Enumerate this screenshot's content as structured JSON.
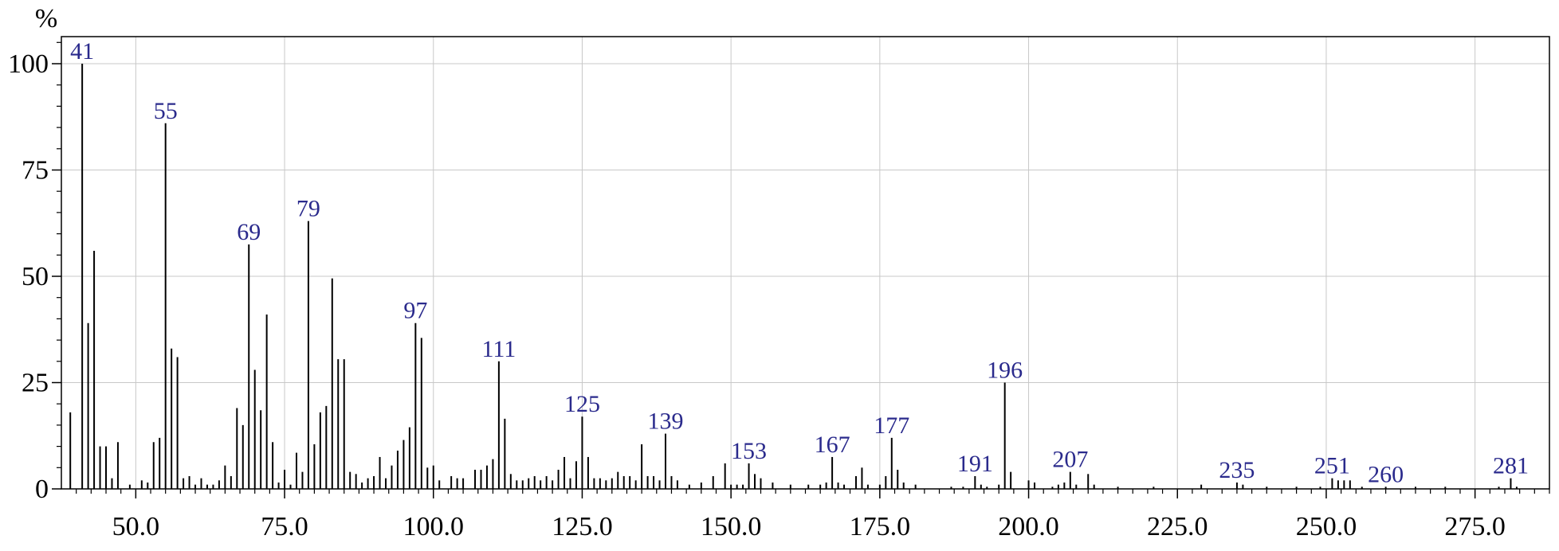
{
  "chart_data": {
    "type": "bar",
    "subtype": "mass-spectrum",
    "ylabel": "%",
    "xlabel": "",
    "xlim": [
      37.5,
      287.5
    ],
    "ylim": [
      0,
      106
    ],
    "grid": true,
    "x_ticks": [
      50.0,
      75.0,
      100.0,
      125.0,
      150.0,
      175.0,
      200.0,
      225.0,
      250.0,
      275.0
    ],
    "x_tick_labels": [
      "50.0",
      "75.0",
      "100.0",
      "125.0",
      "150.0",
      "175.0",
      "200.0",
      "225.0",
      "250.0",
      "275.0"
    ],
    "y_ticks": [
      0,
      25,
      50,
      75,
      100
    ],
    "y_tick_labels": [
      "0",
      "25",
      "50",
      "75",
      "100"
    ],
    "peak_labels": [
      "41",
      "55",
      "69",
      "79",
      "97",
      "111",
      "125",
      "139",
      "153",
      "167",
      "177",
      "191",
      "196",
      "207",
      "235",
      "251",
      "260",
      "281"
    ],
    "peaks": [
      {
        "mz": 39,
        "intensity": 18
      },
      {
        "mz": 41,
        "intensity": 100,
        "label": "41"
      },
      {
        "mz": 42,
        "intensity": 39
      },
      {
        "mz": 43,
        "intensity": 56
      },
      {
        "mz": 44,
        "intensity": 10
      },
      {
        "mz": 45,
        "intensity": 10
      },
      {
        "mz": 46,
        "intensity": 2.5
      },
      {
        "mz": 47,
        "intensity": 11
      },
      {
        "mz": 49,
        "intensity": 1
      },
      {
        "mz": 51,
        "intensity": 2
      },
      {
        "mz": 52,
        "intensity": 1.5
      },
      {
        "mz": 53,
        "intensity": 11
      },
      {
        "mz": 54,
        "intensity": 12
      },
      {
        "mz": 55,
        "intensity": 86,
        "label": "55"
      },
      {
        "mz": 56,
        "intensity": 33
      },
      {
        "mz": 57,
        "intensity": 31
      },
      {
        "mz": 58,
        "intensity": 2.5
      },
      {
        "mz": 59,
        "intensity": 3
      },
      {
        "mz": 60,
        "intensity": 1
      },
      {
        "mz": 61,
        "intensity": 2.5
      },
      {
        "mz": 62,
        "intensity": 1
      },
      {
        "mz": 63,
        "intensity": 1
      },
      {
        "mz": 64,
        "intensity": 2
      },
      {
        "mz": 65,
        "intensity": 5.5
      },
      {
        "mz": 66,
        "intensity": 3
      },
      {
        "mz": 67,
        "intensity": 19
      },
      {
        "mz": 68,
        "intensity": 15
      },
      {
        "mz": 69,
        "intensity": 57.5,
        "label": "69"
      },
      {
        "mz": 70,
        "intensity": 28
      },
      {
        "mz": 71,
        "intensity": 18.5
      },
      {
        "mz": 72,
        "intensity": 41
      },
      {
        "mz": 73,
        "intensity": 11
      },
      {
        "mz": 74,
        "intensity": 1.5
      },
      {
        "mz": 75,
        "intensity": 4.5
      },
      {
        "mz": 76,
        "intensity": 1
      },
      {
        "mz": 77,
        "intensity": 8.5
      },
      {
        "mz": 78,
        "intensity": 4
      },
      {
        "mz": 79,
        "intensity": 63,
        "label": "79"
      },
      {
        "mz": 80,
        "intensity": 10.5
      },
      {
        "mz": 81,
        "intensity": 18
      },
      {
        "mz": 82,
        "intensity": 19.5
      },
      {
        "mz": 83,
        "intensity": 49.5
      },
      {
        "mz": 84,
        "intensity": 30.5
      },
      {
        "mz": 85,
        "intensity": 30.5
      },
      {
        "mz": 86,
        "intensity": 4
      },
      {
        "mz": 87,
        "intensity": 3.5
      },
      {
        "mz": 88,
        "intensity": 1.5
      },
      {
        "mz": 89,
        "intensity": 2.5
      },
      {
        "mz": 90,
        "intensity": 3
      },
      {
        "mz": 91,
        "intensity": 7.5
      },
      {
        "mz": 92,
        "intensity": 2.5
      },
      {
        "mz": 93,
        "intensity": 5.5
      },
      {
        "mz": 94,
        "intensity": 9
      },
      {
        "mz": 95,
        "intensity": 11.5
      },
      {
        "mz": 96,
        "intensity": 14.5
      },
      {
        "mz": 97,
        "intensity": 39,
        "label": "97"
      },
      {
        "mz": 98,
        "intensity": 35.5
      },
      {
        "mz": 99,
        "intensity": 5
      },
      {
        "mz": 100,
        "intensity": 5.5
      },
      {
        "mz": 101,
        "intensity": 2
      },
      {
        "mz": 103,
        "intensity": 3
      },
      {
        "mz": 104,
        "intensity": 2.5
      },
      {
        "mz": 105,
        "intensity": 2.5
      },
      {
        "mz": 107,
        "intensity": 4.5
      },
      {
        "mz": 108,
        "intensity": 4.5
      },
      {
        "mz": 109,
        "intensity": 5.5
      },
      {
        "mz": 110,
        "intensity": 7
      },
      {
        "mz": 111,
        "intensity": 30,
        "label": "111"
      },
      {
        "mz": 112,
        "intensity": 16.5
      },
      {
        "mz": 113,
        "intensity": 3.5
      },
      {
        "mz": 114,
        "intensity": 2
      },
      {
        "mz": 115,
        "intensity": 2
      },
      {
        "mz": 116,
        "intensity": 2.5
      },
      {
        "mz": 117,
        "intensity": 3
      },
      {
        "mz": 118,
        "intensity": 2
      },
      {
        "mz": 119,
        "intensity": 3
      },
      {
        "mz": 120,
        "intensity": 2
      },
      {
        "mz": 121,
        "intensity": 4.5
      },
      {
        "mz": 122,
        "intensity": 7.5
      },
      {
        "mz": 123,
        "intensity": 2.5
      },
      {
        "mz": 124,
        "intensity": 6.5
      },
      {
        "mz": 125,
        "intensity": 17,
        "label": "125"
      },
      {
        "mz": 126,
        "intensity": 7.5
      },
      {
        "mz": 127,
        "intensity": 2.5
      },
      {
        "mz": 128,
        "intensity": 2.5
      },
      {
        "mz": 129,
        "intensity": 2
      },
      {
        "mz": 130,
        "intensity": 2.5
      },
      {
        "mz": 131,
        "intensity": 4
      },
      {
        "mz": 132,
        "intensity": 3
      },
      {
        "mz": 133,
        "intensity": 3
      },
      {
        "mz": 134,
        "intensity": 2
      },
      {
        "mz": 135,
        "intensity": 10.5
      },
      {
        "mz": 136,
        "intensity": 3
      },
      {
        "mz": 137,
        "intensity": 3
      },
      {
        "mz": 138,
        "intensity": 2
      },
      {
        "mz": 139,
        "intensity": 13,
        "label": "139"
      },
      {
        "mz": 140,
        "intensity": 3
      },
      {
        "mz": 141,
        "intensity": 2
      },
      {
        "mz": 143,
        "intensity": 1
      },
      {
        "mz": 145,
        "intensity": 1.5
      },
      {
        "mz": 147,
        "intensity": 3
      },
      {
        "mz": 149,
        "intensity": 6
      },
      {
        "mz": 150,
        "intensity": 1
      },
      {
        "mz": 151,
        "intensity": 1
      },
      {
        "mz": 152,
        "intensity": 1
      },
      {
        "mz": 153,
        "intensity": 6,
        "label": "153"
      },
      {
        "mz": 154,
        "intensity": 3.5
      },
      {
        "mz": 155,
        "intensity": 2.5
      },
      {
        "mz": 157,
        "intensity": 1.5
      },
      {
        "mz": 160,
        "intensity": 1
      },
      {
        "mz": 163,
        "intensity": 1
      },
      {
        "mz": 165,
        "intensity": 1
      },
      {
        "mz": 166,
        "intensity": 1.5
      },
      {
        "mz": 167,
        "intensity": 7.5,
        "label": "167"
      },
      {
        "mz": 168,
        "intensity": 1.5
      },
      {
        "mz": 169,
        "intensity": 1
      },
      {
        "mz": 171,
        "intensity": 3
      },
      {
        "mz": 172,
        "intensity": 5
      },
      {
        "mz": 173,
        "intensity": 1
      },
      {
        "mz": 175,
        "intensity": 1
      },
      {
        "mz": 176,
        "intensity": 3
      },
      {
        "mz": 177,
        "intensity": 12,
        "label": "177"
      },
      {
        "mz": 178,
        "intensity": 4.5
      },
      {
        "mz": 179,
        "intensity": 1.5
      },
      {
        "mz": 181,
        "intensity": 1
      },
      {
        "mz": 187,
        "intensity": 0.5
      },
      {
        "mz": 189,
        "intensity": 0.5
      },
      {
        "mz": 191,
        "intensity": 3,
        "label": "191"
      },
      {
        "mz": 192,
        "intensity": 1
      },
      {
        "mz": 193,
        "intensity": 0.5
      },
      {
        "mz": 195,
        "intensity": 1
      },
      {
        "mz": 196,
        "intensity": 25,
        "label": "196"
      },
      {
        "mz": 197,
        "intensity": 4
      },
      {
        "mz": 200,
        "intensity": 2
      },
      {
        "mz": 201,
        "intensity": 1.5
      },
      {
        "mz": 204,
        "intensity": 0.5
      },
      {
        "mz": 205,
        "intensity": 1
      },
      {
        "mz": 206,
        "intensity": 1.5
      },
      {
        "mz": 207,
        "intensity": 4,
        "label": "207"
      },
      {
        "mz": 208,
        "intensity": 1
      },
      {
        "mz": 210,
        "intensity": 3.5
      },
      {
        "mz": 211,
        "intensity": 1
      },
      {
        "mz": 215,
        "intensity": 0.5
      },
      {
        "mz": 221,
        "intensity": 0.5
      },
      {
        "mz": 229,
        "intensity": 1
      },
      {
        "mz": 235,
        "intensity": 1.5,
        "label": "235"
      },
      {
        "mz": 236,
        "intensity": 1
      },
      {
        "mz": 240,
        "intensity": 0.5
      },
      {
        "mz": 245,
        "intensity": 0.5
      },
      {
        "mz": 249,
        "intensity": 0.5
      },
      {
        "mz": 251,
        "intensity": 2.5,
        "label": "251"
      },
      {
        "mz": 252,
        "intensity": 2
      },
      {
        "mz": 253,
        "intensity": 2
      },
      {
        "mz": 254,
        "intensity": 2
      },
      {
        "mz": 256,
        "intensity": 0.5
      },
      {
        "mz": 260,
        "intensity": 0.5,
        "label": "260"
      },
      {
        "mz": 265,
        "intensity": 0.5
      },
      {
        "mz": 270,
        "intensity": 0.5
      },
      {
        "mz": 279,
        "intensity": 0.5
      },
      {
        "mz": 281,
        "intensity": 2.5,
        "label": "281"
      },
      {
        "mz": 282,
        "intensity": 0.5
      }
    ]
  }
}
